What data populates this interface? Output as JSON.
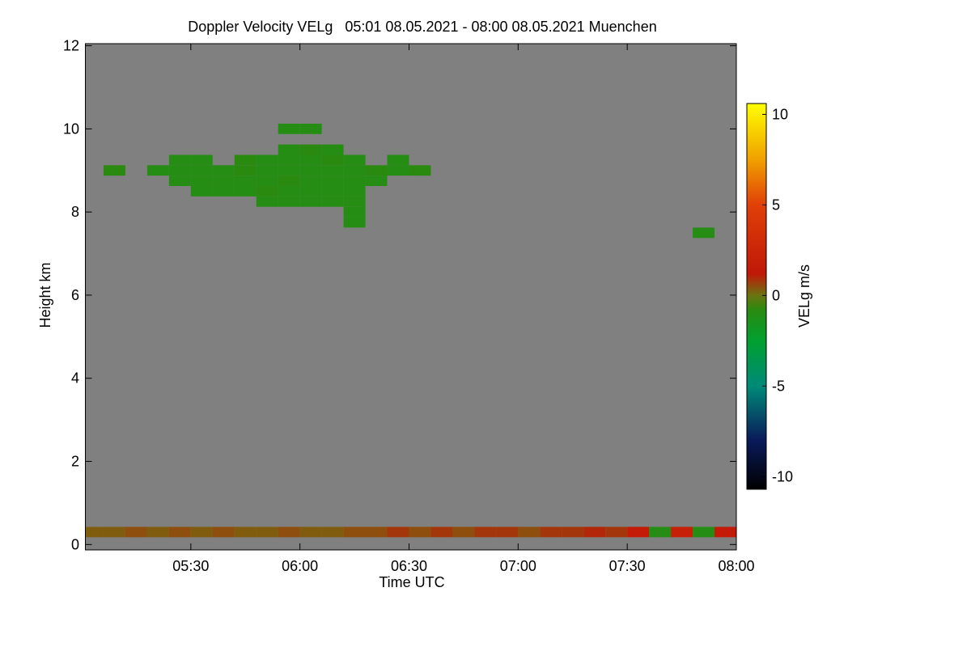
{
  "chart_data": {
    "type": "heatmap",
    "title": "Doppler Velocity VELg   05:01 08.05.2021 - 08:00 08.05.2021 Muenchen",
    "xlabel": "Time UTC",
    "ylabel": "Height km",
    "colorbar_label": "VELg m/s",
    "background": "#808080",
    "xlim": [
      5.0167,
      8.0
    ],
    "xticks": [
      {
        "value": 5.5,
        "label": "05:30"
      },
      {
        "value": 6,
        "label": "06:00"
      },
      {
        "value": 6.5,
        "label": "06:30"
      },
      {
        "value": 7,
        "label": "07:00"
      },
      {
        "value": 7.5,
        "label": "07:30"
      },
      {
        "value": 8,
        "label": "08:00"
      }
    ],
    "ylim": [
      -0.13,
      12.05
    ],
    "yticks": [
      0,
      2,
      4,
      6,
      8,
      10,
      12
    ],
    "clim": [
      -10.7,
      10.6
    ],
    "cticks": [
      -10,
      -5,
      0,
      5,
      10
    ],
    "colormap": [
      {
        "value": -10.7,
        "color": "#000000"
      },
      {
        "value": -8,
        "color": "#0a1a5a"
      },
      {
        "value": -5,
        "color": "#008a78"
      },
      {
        "value": -2.5,
        "color": "#00a030"
      },
      {
        "value": -0.8,
        "color": "#2a8a10"
      },
      {
        "value": 0,
        "color": "#6a7410"
      },
      {
        "value": 1.2,
        "color": "#c01808"
      },
      {
        "value": 5,
        "color": "#e04008"
      },
      {
        "value": 7.5,
        "color": "#f0a000"
      },
      {
        "value": 10.6,
        "color": "#ffff00"
      }
    ],
    "cells": {
      "x": [
        5.95,
        6.05,
        5.95,
        6.05,
        6.15,
        5.45,
        5.55,
        5.75,
        5.85,
        5.95,
        6.05,
        6.15,
        6.25,
        6.45,
        5.15,
        5.35,
        5.45,
        5.55,
        5.65,
        5.75,
        5.85,
        5.95,
        6.05,
        6.15,
        6.25,
        6.35,
        6.45,
        6.55,
        5.45,
        5.55,
        5.65,
        5.75,
        5.85,
        5.95,
        6.05,
        6.15,
        6.25,
        6.35,
        5.55,
        5.65,
        5.75,
        5.85,
        5.95,
        6.05,
        6.15,
        6.25,
        5.85,
        5.95,
        6.05,
        6.15,
        6.25,
        6.25,
        6.25,
        7.85,
        5.05,
        5.15,
        5.25,
        5.35,
        5.45,
        5.55,
        5.65,
        5.75,
        5.85,
        5.95,
        6.05,
        6.15,
        6.25,
        6.35,
        6.45,
        6.55,
        6.65,
        6.75,
        6.85,
        6.95,
        7.05,
        7.15,
        7.25,
        7.35,
        7.45,
        7.55,
        7.65,
        7.75,
        7.85,
        7.95
      ],
      "y": [
        10.0,
        10.0,
        9.5,
        9.5,
        9.5,
        9.25,
        9.25,
        9.25,
        9.25,
        9.25,
        9.25,
        9.25,
        9.25,
        9.25,
        9.0,
        9.0,
        9.0,
        9.0,
        9.0,
        9.0,
        9.0,
        9.0,
        9.0,
        9.0,
        9.0,
        9.0,
        9.0,
        9.0,
        8.75,
        8.75,
        8.75,
        8.75,
        8.75,
        8.75,
        8.75,
        8.75,
        8.75,
        8.75,
        8.5,
        8.5,
        8.5,
        8.5,
        8.5,
        8.5,
        8.5,
        8.5,
        8.25,
        8.25,
        8.25,
        8.25,
        8.25,
        8.0,
        7.75,
        7.5,
        0.3,
        0.3,
        0.3,
        0.3,
        0.3,
        0.3,
        0.3,
        0.3,
        0.3,
        0.3,
        0.3,
        0.3,
        0.3,
        0.3,
        0.3,
        0.3,
        0.3,
        0.3,
        0.3,
        0.3,
        0.3,
        0.3,
        0.3,
        0.3,
        0.3,
        0.3,
        0.3,
        0.3,
        0.3,
        0.3
      ],
      "values": [
        -1,
        -1,
        -1,
        -0.8,
        -1,
        -1,
        -1,
        -0.8,
        -1,
        -1,
        -1,
        -0.8,
        -1,
        -1,
        -0.8,
        -1,
        -1,
        -1,
        -1,
        -0.8,
        -1,
        -1,
        -1,
        -1,
        -1,
        -0.8,
        -1,
        -0.8,
        -1,
        -1,
        -1,
        -1,
        -1,
        -0.8,
        -1,
        -1,
        -1,
        -1,
        -1,
        -1,
        -1,
        -0.8,
        -1,
        -1,
        -1,
        -1,
        -1,
        -1,
        -1,
        -1,
        -1,
        -1,
        -1,
        -1,
        0.3,
        0.3,
        0.5,
        0.3,
        0.5,
        0.3,
        0.5,
        0.3,
        0.3,
        0.5,
        0.3,
        0.3,
        0.5,
        0.5,
        0.8,
        0.5,
        0.8,
        0.5,
        0.8,
        0.8,
        0.5,
        0.8,
        0.8,
        1,
        0.8,
        1.5,
        -1,
        2,
        -1,
        1.5
      ]
    }
  }
}
